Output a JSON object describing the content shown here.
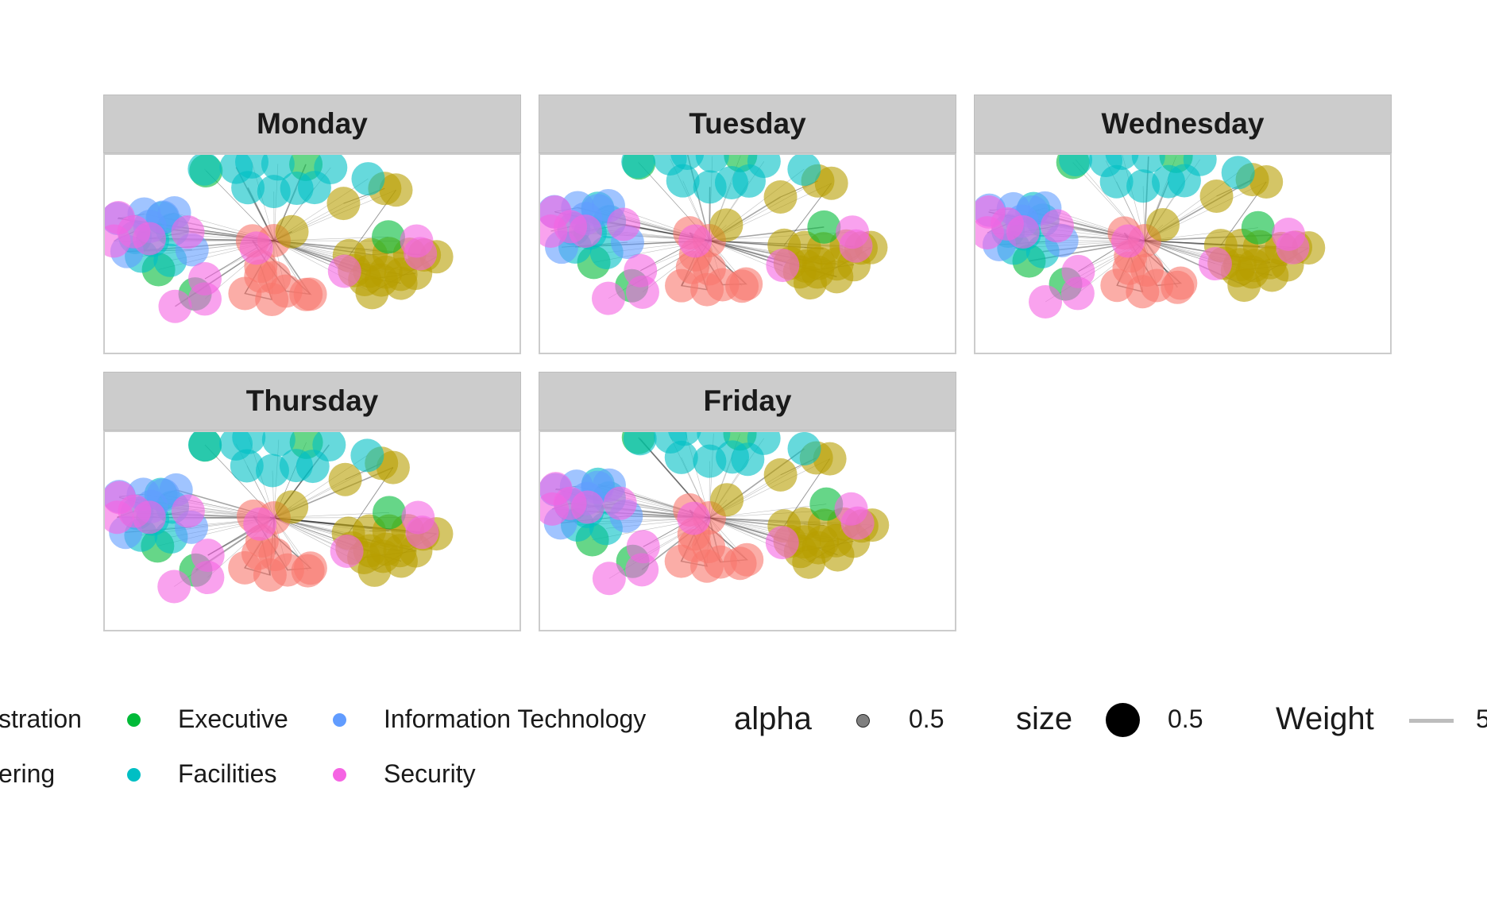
{
  "chart_data": {
    "type": "network",
    "facets": [
      "Monday",
      "Tuesday",
      "Wednesday",
      "Thursday",
      "Friday"
    ],
    "departments": [
      {
        "name": "Administration",
        "color": "#F8766D"
      },
      {
        "name": "Engineering",
        "color": "#B79F00"
      },
      {
        "name": "Executive",
        "color": "#00BA38"
      },
      {
        "name": "Facilities",
        "color": "#00BFC4"
      },
      {
        "name": "Information Technology",
        "color": "#619CFF"
      },
      {
        "name": "Security",
        "color": "#F564E3"
      }
    ],
    "legend": {
      "dept_labels": {
        "administration": "stration",
        "engineering": "ering",
        "executive": "Executive",
        "facilities": "Facilities",
        "it": "Information Technology",
        "security": "Security"
      },
      "alpha_title": "alpha",
      "alpha_value": "0.5",
      "size_title": "size",
      "size_value": "0.5",
      "weight_title": "Weight",
      "weight_value": "5"
    },
    "node_alpha": 0.5,
    "edge_color": "#000000"
  }
}
